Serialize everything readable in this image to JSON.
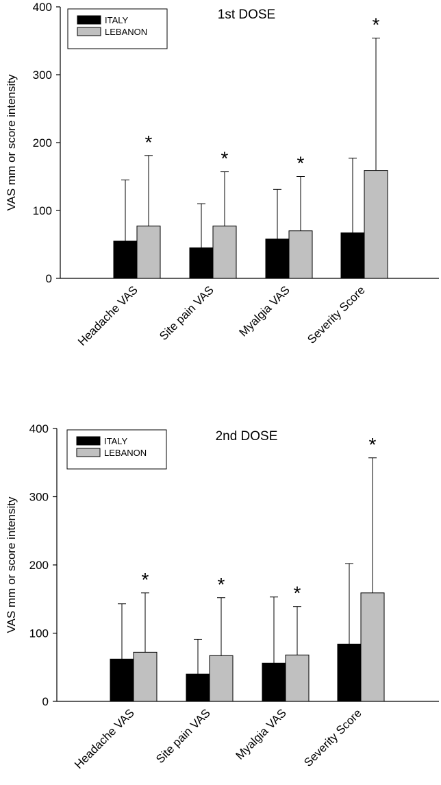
{
  "chart_data": [
    {
      "type": "bar",
      "title": "1st DOSE",
      "ylabel": "VAS mm or score intensity",
      "xlabel": "",
      "ylim": [
        0,
        400
      ],
      "yticks": [
        0,
        100,
        200,
        300,
        400
      ],
      "categories": [
        "Headache VAS",
        "Site pain VAS",
        "Myalgia VAS",
        "Severity Score"
      ],
      "legend": [
        "ITALY",
        "LEBANON"
      ],
      "colors": [
        "#000000",
        "#c0c0c0"
      ],
      "series": [
        {
          "name": "ITALY",
          "values": [
            55,
            45,
            58,
            67
          ],
          "errors_upper": [
            145,
            110,
            131,
            177
          ]
        },
        {
          "name": "LEBANON",
          "values": [
            77,
            77,
            70,
            159
          ],
          "errors_upper": [
            181,
            157,
            150,
            354
          ]
        }
      ],
      "significance": [
        true,
        true,
        true,
        true
      ],
      "significance_mark": "*"
    },
    {
      "type": "bar",
      "title": "2nd DOSE",
      "ylabel": "VAS mm or score intensity",
      "xlabel": "",
      "ylim": [
        0,
        400
      ],
      "yticks": [
        0,
        100,
        200,
        300,
        400
      ],
      "categories": [
        "Headache VAS",
        "Site pain VAS",
        "Myalgia VAS",
        "Severity Score"
      ],
      "legend": [
        "ITALY",
        "LEBANON"
      ],
      "colors": [
        "#000000",
        "#c0c0c0"
      ],
      "series": [
        {
          "name": "ITALY",
          "values": [
            62,
            40,
            56,
            84
          ],
          "errors_upper": [
            143,
            91,
            153,
            202
          ]
        },
        {
          "name": "LEBANON",
          "values": [
            72,
            67,
            68,
            159
          ],
          "errors_upper": [
            159,
            152,
            139,
            357
          ]
        }
      ],
      "significance": [
        true,
        true,
        true,
        true
      ],
      "significance_mark": "*"
    }
  ]
}
